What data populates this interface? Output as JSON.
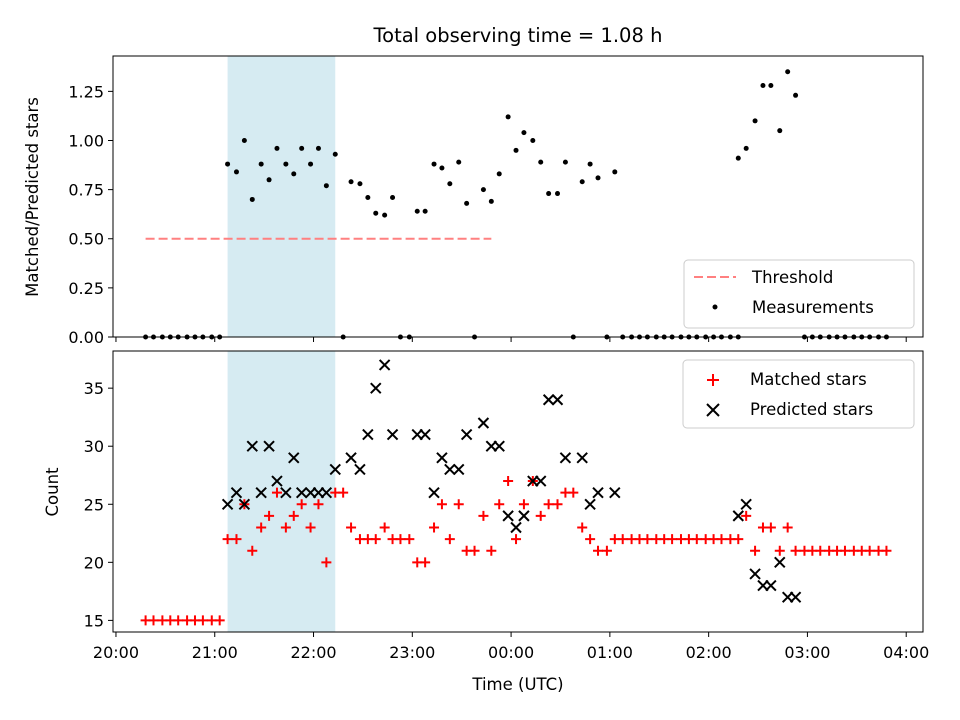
{
  "chart_data": {
    "title": "Total observing time = 1.08 h",
    "xlabel": "Time (UTC)",
    "x_ticks": [
      "20:00",
      "21:00",
      "22:00",
      "23:00",
      "00:00",
      "01:00",
      "02:00",
      "03:00",
      "04:00"
    ],
    "x_range_hours": [
      19.97,
      28.17
    ],
    "highlight_span_hours": [
      21.13,
      22.22
    ],
    "highlight_color": "#add8e6",
    "panels": [
      {
        "type": "scatter",
        "ylabel": "Matched/Predicted stars",
        "ylim": [
          0,
          1.43
        ],
        "yticks": [
          "0.00",
          "0.25",
          "0.50",
          "0.75",
          "1.00",
          "1.25"
        ],
        "legend_placement": "lower-right",
        "threshold": {
          "name": "Threshold",
          "y": 0.5,
          "x_start": 20.3,
          "x_end": 23.8,
          "color": "#ff8080"
        },
        "measurements": {
          "name": "Measurements",
          "color": "#000000",
          "points": [
            [
              20.3,
              0
            ],
            [
              20.38,
              0
            ],
            [
              20.47,
              0
            ],
            [
              20.55,
              0
            ],
            [
              20.63,
              0
            ],
            [
              20.72,
              0
            ],
            [
              20.8,
              0
            ],
            [
              20.88,
              0
            ],
            [
              20.97,
              0
            ],
            [
              21.05,
              0
            ],
            [
              21.13,
              0.88
            ],
            [
              21.22,
              0.84
            ],
            [
              21.3,
              1.0
            ],
            [
              21.38,
              0.7
            ],
            [
              21.47,
              0.88
            ],
            [
              21.55,
              0.8
            ],
            [
              21.63,
              0.96
            ],
            [
              21.72,
              0.88
            ],
            [
              21.8,
              0.83
            ],
            [
              21.88,
              0.96
            ],
            [
              21.97,
              0.88
            ],
            [
              22.05,
              0.96
            ],
            [
              22.13,
              0.77
            ],
            [
              22.22,
              0.93
            ],
            [
              22.3,
              0
            ],
            [
              22.38,
              0.79
            ],
            [
              22.47,
              0.78
            ],
            [
              22.55,
              0.71
            ],
            [
              22.63,
              0.63
            ],
            [
              22.72,
              0.62
            ],
            [
              22.8,
              0.71
            ],
            [
              22.88,
              0
            ],
            [
              22.97,
              0
            ],
            [
              23.05,
              0.64
            ],
            [
              23.13,
              0.64
            ],
            [
              23.22,
              0.88
            ],
            [
              23.3,
              0.86
            ],
            [
              23.38,
              0.78
            ],
            [
              23.47,
              0.89
            ],
            [
              23.55,
              0.68
            ],
            [
              23.63,
              0
            ],
            [
              23.72,
              0.75
            ],
            [
              23.8,
              0.69
            ],
            [
              23.88,
              0.83
            ],
            [
              23.97,
              1.12
            ],
            [
              24.05,
              0.95
            ],
            [
              24.13,
              1.04
            ],
            [
              24.22,
              1.0
            ],
            [
              24.3,
              0.89
            ],
            [
              24.38,
              0.73
            ],
            [
              24.47,
              0.73
            ],
            [
              24.55,
              0.89
            ],
            [
              24.63,
              0
            ],
            [
              24.72,
              0.79
            ],
            [
              24.8,
              0.88
            ],
            [
              24.88,
              0.81
            ],
            [
              24.97,
              0
            ],
            [
              25.05,
              0.84
            ],
            [
              25.13,
              0
            ],
            [
              25.22,
              0
            ],
            [
              25.3,
              0
            ],
            [
              25.38,
              0
            ],
            [
              25.47,
              0
            ],
            [
              25.55,
              0
            ],
            [
              25.63,
              0
            ],
            [
              25.72,
              0
            ],
            [
              25.8,
              0
            ],
            [
              25.88,
              0
            ],
            [
              25.97,
              0
            ],
            [
              26.05,
              0
            ],
            [
              26.13,
              0
            ],
            [
              26.22,
              0
            ],
            [
              26.3,
              0
            ],
            [
              26.3,
              0.91
            ],
            [
              26.38,
              0.96
            ],
            [
              26.47,
              1.1
            ],
            [
              26.55,
              1.28
            ],
            [
              26.63,
              1.28
            ],
            [
              26.72,
              1.05
            ],
            [
              26.8,
              1.35
            ],
            [
              26.88,
              1.23
            ],
            [
              26.97,
              0
            ],
            [
              27.05,
              0
            ],
            [
              27.13,
              0
            ],
            [
              27.22,
              0
            ],
            [
              27.3,
              0
            ],
            [
              27.38,
              0
            ],
            [
              27.47,
              0
            ],
            [
              27.55,
              0
            ],
            [
              27.63,
              0
            ],
            [
              27.72,
              0
            ],
            [
              27.8,
              0
            ]
          ]
        }
      },
      {
        "type": "scatter",
        "ylabel": "Count",
        "ylim": [
          14,
          38.2
        ],
        "yticks": [
          "15",
          "20",
          "25",
          "30",
          "35"
        ],
        "legend_placement": "upper-right",
        "series": [
          {
            "name": "Matched stars",
            "marker": "+",
            "color": "#ff0000",
            "points": [
              [
                20.3,
                15
              ],
              [
                20.38,
                15
              ],
              [
                20.47,
                15
              ],
              [
                20.55,
                15
              ],
              [
                20.63,
                15
              ],
              [
                20.72,
                15
              ],
              [
                20.8,
                15
              ],
              [
                20.88,
                15
              ],
              [
                20.97,
                15
              ],
              [
                21.05,
                15
              ],
              [
                21.13,
                22
              ],
              [
                21.22,
                22
              ],
              [
                21.3,
                25
              ],
              [
                21.38,
                21
              ],
              [
                21.47,
                23
              ],
              [
                21.55,
                24
              ],
              [
                21.63,
                26
              ],
              [
                21.72,
                23
              ],
              [
                21.8,
                24
              ],
              [
                21.88,
                25
              ],
              [
                21.97,
                23
              ],
              [
                22.05,
                25
              ],
              [
                22.13,
                20
              ],
              [
                22.22,
                26
              ],
              [
                22.3,
                26
              ],
              [
                22.38,
                23
              ],
              [
                22.47,
                22
              ],
              [
                22.55,
                22
              ],
              [
                22.63,
                22
              ],
              [
                22.72,
                23
              ],
              [
                22.8,
                22
              ],
              [
                22.88,
                22
              ],
              [
                22.97,
                22
              ],
              [
                23.05,
                20
              ],
              [
                23.13,
                20
              ],
              [
                23.22,
                23
              ],
              [
                23.3,
                25
              ],
              [
                23.38,
                22
              ],
              [
                23.47,
                25
              ],
              [
                23.55,
                21
              ],
              [
                23.63,
                21
              ],
              [
                23.72,
                24
              ],
              [
                23.8,
                21
              ],
              [
                23.88,
                25
              ],
              [
                23.97,
                27
              ],
              [
                24.05,
                22
              ],
              [
                24.13,
                25
              ],
              [
                24.22,
                27
              ],
              [
                24.3,
                24
              ],
              [
                24.38,
                25
              ],
              [
                24.47,
                25
              ],
              [
                24.55,
                26
              ],
              [
                24.63,
                26
              ],
              [
                24.72,
                23
              ],
              [
                24.8,
                22
              ],
              [
                24.88,
                21
              ],
              [
                24.97,
                21
              ],
              [
                25.05,
                22
              ],
              [
                25.13,
                22
              ],
              [
                25.22,
                22
              ],
              [
                25.3,
                22
              ],
              [
                25.38,
                22
              ],
              [
                25.47,
                22
              ],
              [
                25.55,
                22
              ],
              [
                25.63,
                22
              ],
              [
                25.72,
                22
              ],
              [
                25.8,
                22
              ],
              [
                25.88,
                22
              ],
              [
                25.97,
                22
              ],
              [
                26.05,
                22
              ],
              [
                26.13,
                22
              ],
              [
                26.22,
                22
              ],
              [
                26.3,
                22
              ],
              [
                26.38,
                24
              ],
              [
                26.47,
                21
              ],
              [
                26.55,
                23
              ],
              [
                26.63,
                23
              ],
              [
                26.72,
                21
              ],
              [
                26.8,
                23
              ],
              [
                26.88,
                21
              ],
              [
                26.97,
                21
              ],
              [
                27.05,
                21
              ],
              [
                27.13,
                21
              ],
              [
                27.22,
                21
              ],
              [
                27.3,
                21
              ],
              [
                27.38,
                21
              ],
              [
                27.47,
                21
              ],
              [
                27.55,
                21
              ],
              [
                27.63,
                21
              ],
              [
                27.72,
                21
              ],
              [
                27.8,
                21
              ]
            ]
          },
          {
            "name": "Predicted stars",
            "marker": "x",
            "color": "#000000",
            "points": [
              [
                21.13,
                25
              ],
              [
                21.22,
                26
              ],
              [
                21.3,
                25
              ],
              [
                21.38,
                30
              ],
              [
                21.47,
                26
              ],
              [
                21.55,
                30
              ],
              [
                21.63,
                27
              ],
              [
                21.72,
                26
              ],
              [
                21.8,
                29
              ],
              [
                21.88,
                26
              ],
              [
                21.97,
                26
              ],
              [
                22.05,
                26
              ],
              [
                22.13,
                26
              ],
              [
                22.22,
                28
              ],
              [
                22.38,
                29
              ],
              [
                22.47,
                28
              ],
              [
                22.55,
                31
              ],
              [
                22.63,
                35
              ],
              [
                22.72,
                37
              ],
              [
                22.8,
                31
              ],
              [
                23.05,
                31
              ],
              [
                23.13,
                31
              ],
              [
                23.22,
                26
              ],
              [
                23.3,
                29
              ],
              [
                23.38,
                28
              ],
              [
                23.47,
                28
              ],
              [
                23.55,
                31
              ],
              [
                23.72,
                32
              ],
              [
                23.8,
                30
              ],
              [
                23.88,
                30
              ],
              [
                23.97,
                24
              ],
              [
                24.05,
                23
              ],
              [
                24.13,
                24
              ],
              [
                24.22,
                27
              ],
              [
                24.3,
                27
              ],
              [
                24.38,
                34
              ],
              [
                24.47,
                34
              ],
              [
                24.55,
                29
              ],
              [
                24.72,
                29
              ],
              [
                24.8,
                25
              ],
              [
                24.88,
                26
              ],
              [
                25.05,
                26
              ],
              [
                26.3,
                24
              ],
              [
                26.38,
                25
              ],
              [
                26.47,
                19
              ],
              [
                26.55,
                18
              ],
              [
                26.63,
                18
              ],
              [
                26.72,
                20
              ],
              [
                26.8,
                17
              ],
              [
                26.88,
                17
              ]
            ]
          }
        ]
      }
    ],
    "legend": {
      "threshold": "Threshold",
      "measurements": "Measurements",
      "matched": "Matched stars",
      "predicted": "Predicted stars"
    }
  }
}
